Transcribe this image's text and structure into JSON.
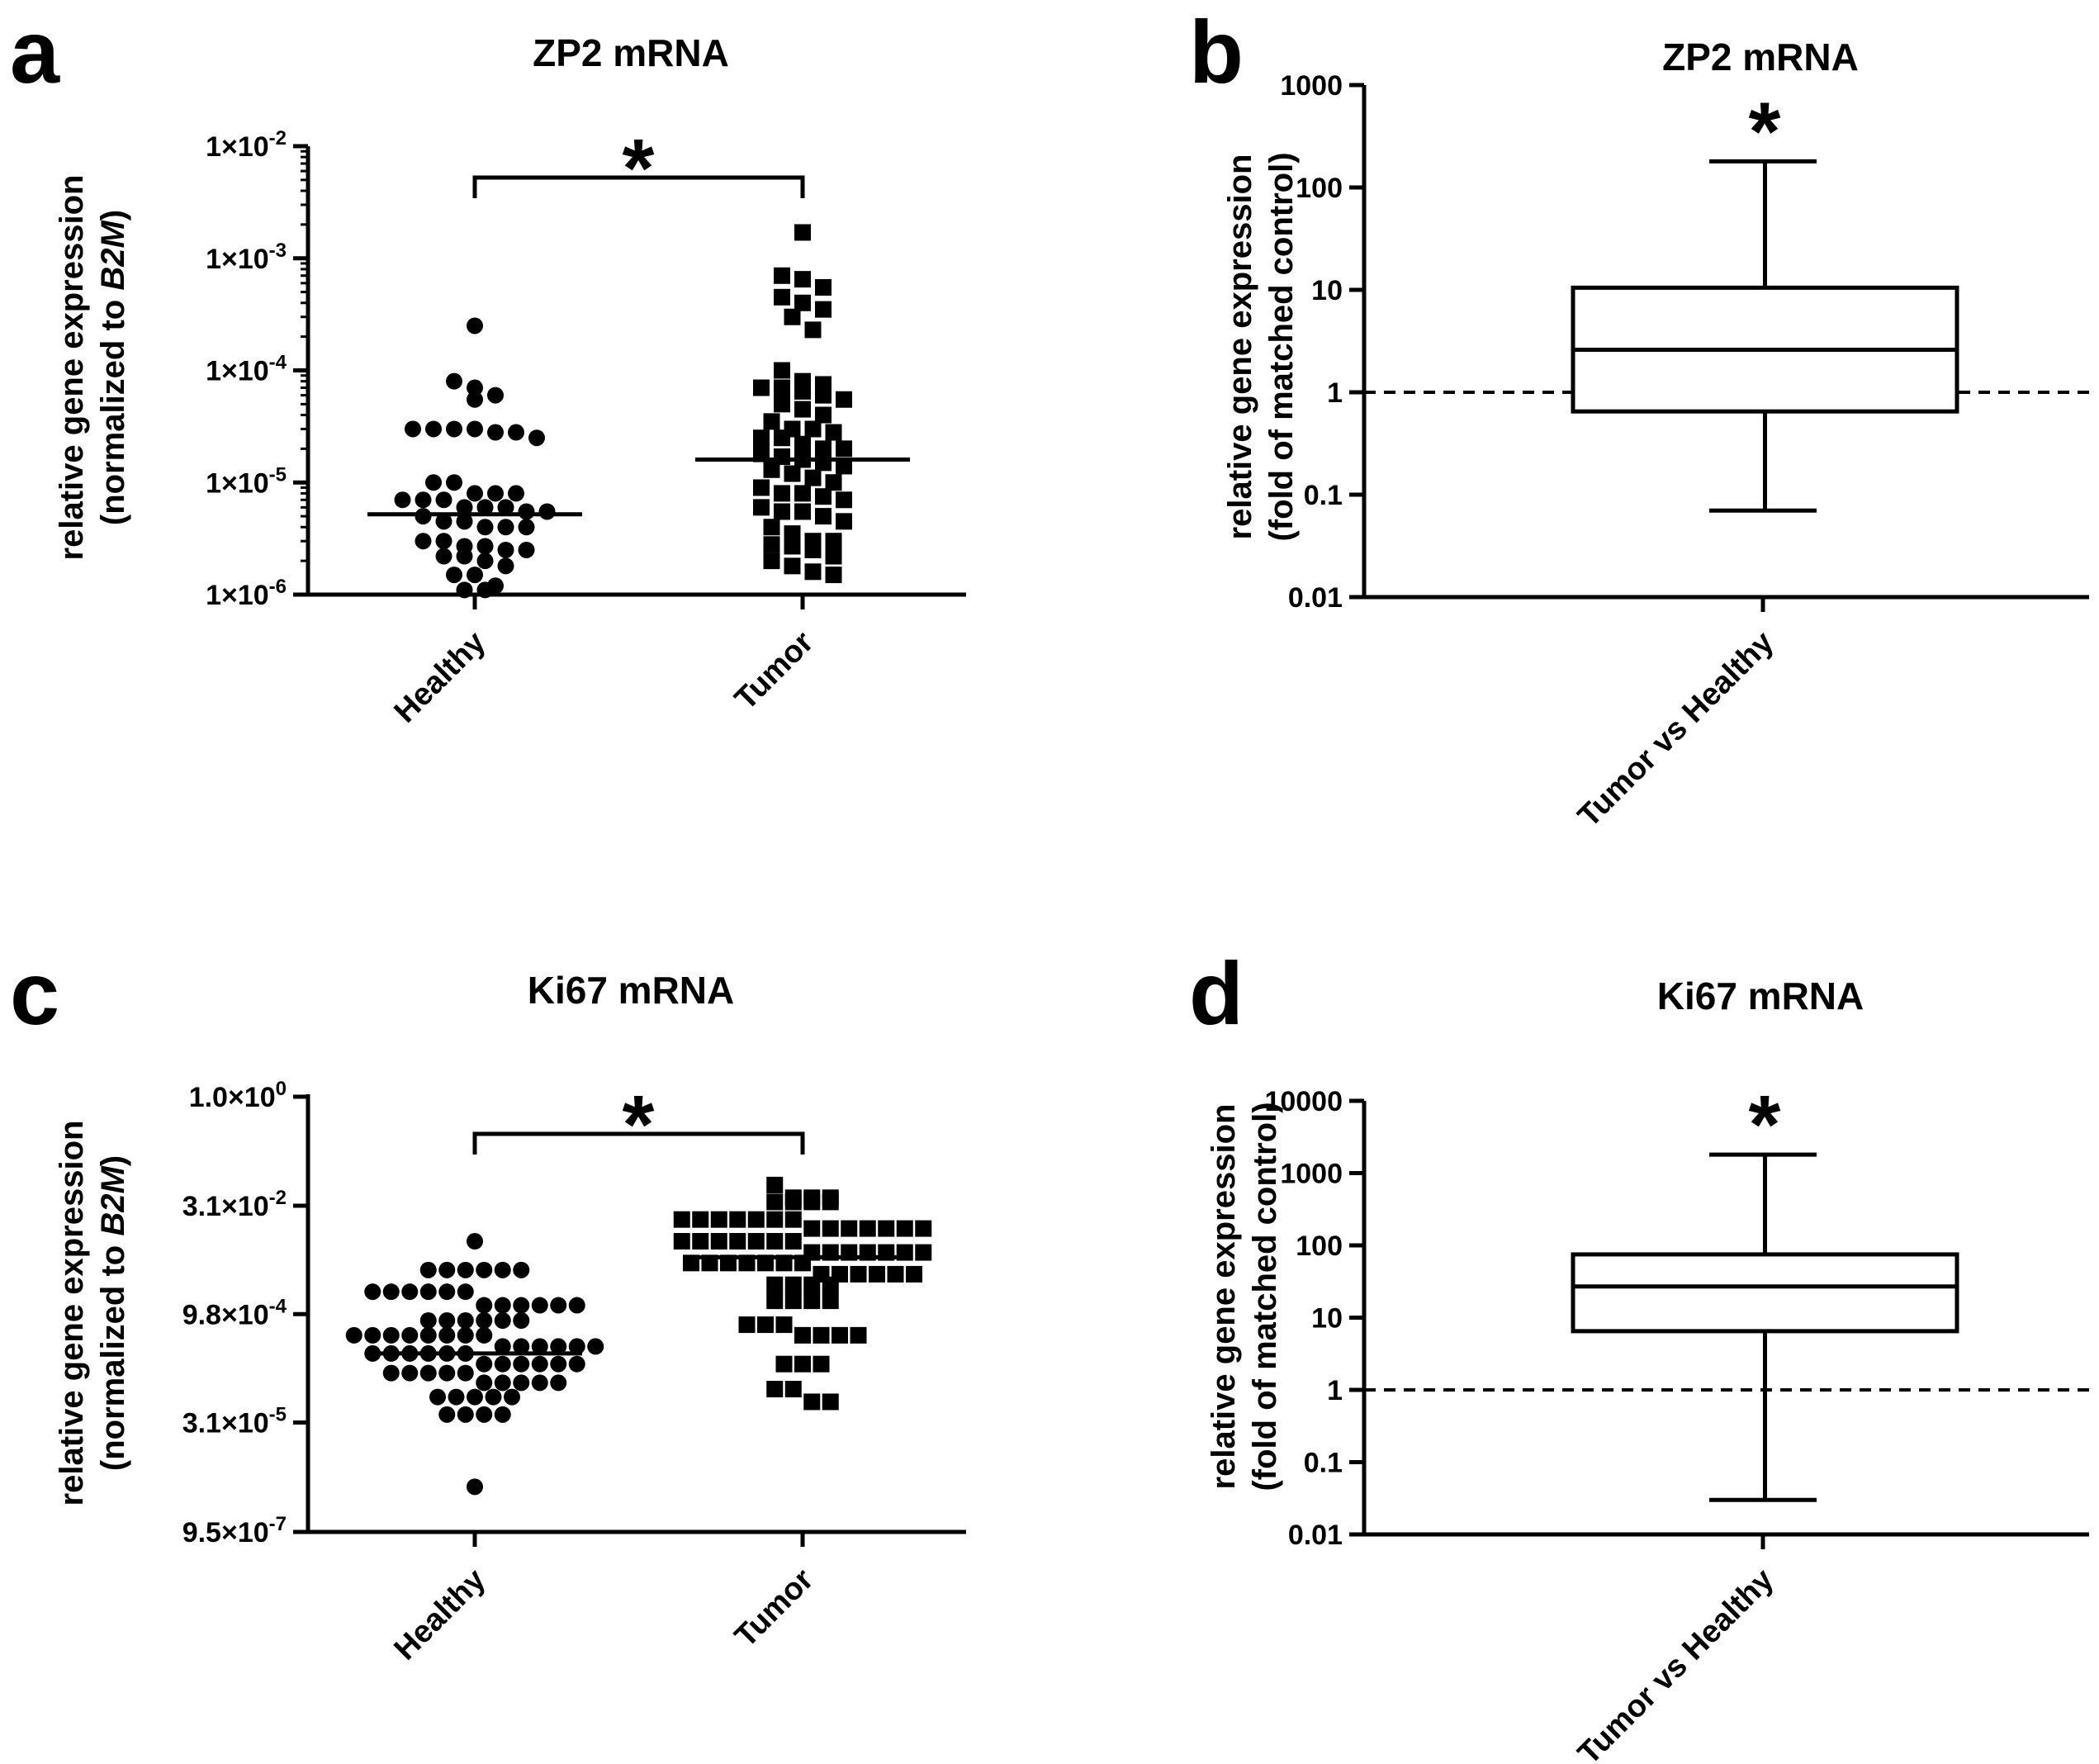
{
  "panels": {
    "a": {
      "letter": "a",
      "title": "ZP2 mRNA",
      "ylabel_line1": "relative gene expression",
      "ylabel_line2_prefix": "(normalized to ",
      "ylabel_line2_italic": "B2M",
      "ylabel_line2_suffix": ")",
      "significance": "*"
    },
    "b": {
      "letter": "b",
      "title": "ZP2 mRNA",
      "ylabel_line1": "relative gene expression",
      "ylabel_line2": "(fold of matched control)",
      "significance": "*"
    },
    "c": {
      "letter": "c",
      "title": "Ki67 mRNA",
      "ylabel_line1": "relative gene expression",
      "ylabel_line2_prefix": "(normalized to ",
      "ylabel_line2_italic": "B2M",
      "ylabel_line2_suffix": ")",
      "significance": "*"
    },
    "d": {
      "letter": "d",
      "title": "Ki67 mRNA",
      "ylabel_line1": "relative gene expression",
      "ylabel_line2": "(fold of matched control)",
      "significance": "*"
    }
  },
  "chart_data": [
    {
      "panel": "a",
      "type": "scatter",
      "title": "ZP2 mRNA",
      "yscale": "log",
      "ylim": [
        1e-06,
        0.01
      ],
      "yticks": [
        {
          "value": 0.01,
          "mant": "1×10",
          "exp": "-2"
        },
        {
          "value": 0.001,
          "mant": "1×10",
          "exp": "-3"
        },
        {
          "value": 0.0001,
          "mant": "1×10",
          "exp": "-4"
        },
        {
          "value": 1e-05,
          "mant": "1×10",
          "exp": "-5"
        },
        {
          "value": 1e-06,
          "mant": "1×10",
          "exp": "-6"
        }
      ],
      "categories": [
        "Healthy",
        "Tumor"
      ],
      "series": [
        {
          "name": "Healthy",
          "marker": "circle",
          "median": 5.2e-06,
          "values": [
            0.00025,
            8e-05,
            6e-05,
            7e-05,
            5.5e-05,
            3e-05,
            3e-05,
            2.8e-05,
            2.8e-05,
            3e-05,
            3e-05,
            2.5e-05,
            1e-05,
            1e-05,
            8e-06,
            8e-06,
            8e-06,
            7e-06,
            7e-06,
            7e-06,
            6e-06,
            6e-06,
            6e-06,
            5.5e-06,
            5.5e-06,
            5e-06,
            4.5e-06,
            4.5e-06,
            4e-06,
            4e-06,
            4e-06,
            3e-06,
            3e-06,
            2.7e-06,
            2.7e-06,
            2.5e-06,
            2.5e-06,
            2.2e-06,
            2.2e-06,
            2e-06,
            1.8e-06,
            1.5e-06,
            1.5e-06,
            1.2e-06,
            1.1e-06,
            1.1e-06
          ]
        },
        {
          "name": "Tumor",
          "marker": "square",
          "median": 1.6e-05,
          "values": [
            0.0017,
            0.0007,
            0.00065,
            0.00055,
            0.00045,
            0.0004,
            0.00035,
            0.0003,
            0.00023,
            0.0001,
            8e-05,
            7.5e-05,
            7e-05,
            7e-05,
            6.5e-05,
            6e-05,
            5.5e-05,
            5e-05,
            4.5e-05,
            4e-05,
            3.5e-05,
            3e-05,
            3e-05,
            2.8e-05,
            2.5e-05,
            2.5e-05,
            2.2e-05,
            2e-05,
            2e-05,
            1.8e-05,
            1.7e-05,
            1.6e-05,
            1.5e-05,
            1.4e-05,
            1.3e-05,
            1.2e-05,
            1.1e-05,
            1e-05,
            9e-06,
            8e-06,
            8e-06,
            7.5e-06,
            7e-06,
            6e-06,
            5.5e-06,
            5.5e-06,
            5e-06,
            4.5e-06,
            4e-06,
            3.5e-06,
            3e-06,
            3e-06,
            2.8e-06,
            2.7e-06,
            2.5e-06,
            2.2e-06,
            2e-06,
            1.8e-06,
            1.6e-06,
            1.5e-06
          ]
        }
      ],
      "significance": "*"
    },
    {
      "panel": "b",
      "type": "box",
      "title": "ZP2 mRNA",
      "yscale": "log",
      "ylim": [
        0.01,
        1000
      ],
      "yticks": [
        {
          "value": 1000,
          "label": "1000"
        },
        {
          "value": 100,
          "label": "100"
        },
        {
          "value": 10,
          "label": "10"
        },
        {
          "value": 1,
          "label": "1"
        },
        {
          "value": 0.1,
          "label": "0.1"
        },
        {
          "value": 0.01,
          "label": "0.01"
        }
      ],
      "categories": [
        "Tumor vs Healthy"
      ],
      "box": {
        "min": 0.07,
        "q1": 0.65,
        "median": 2.6,
        "q3": 10.5,
        "max": 180
      },
      "reference_line": 1,
      "significance": "*"
    },
    {
      "panel": "c",
      "type": "scatter",
      "title": "Ki67 mRNA",
      "yscale": "log",
      "ylim": [
        9.5e-07,
        1.0
      ],
      "yticks": [
        {
          "value": 1.0,
          "mant": "1.0×10",
          "exp": "0"
        },
        {
          "value": 0.031,
          "mant": "3.1×10",
          "exp": "-2"
        },
        {
          "value": 0.00098,
          "mant": "9.8×10",
          "exp": "-4"
        },
        {
          "value": 3.1e-05,
          "mant": "3.1×10",
          "exp": "-5"
        },
        {
          "value": 9.5e-07,
          "mant": "9.5×10",
          "exp": "-7"
        }
      ],
      "categories": [
        "Healthy",
        "Tumor"
      ],
      "series": [
        {
          "name": "Healthy",
          "marker": "circle",
          "median": 0.00028,
          "values": [
            0.01,
            0.004,
            0.004,
            0.004,
            0.004,
            0.004,
            0.004,
            0.002,
            0.002,
            0.002,
            0.002,
            0.002,
            0.002,
            0.0013,
            0.0013,
            0.0013,
            0.0013,
            0.0013,
            0.0013,
            0.0008,
            0.0008,
            0.0008,
            0.0008,
            0.0008,
            0.0008,
            0.0005,
            0.0005,
            0.0005,
            0.0005,
            0.0005,
            0.0005,
            0.0005,
            0.0005,
            0.00035,
            0.00035,
            0.00035,
            0.00035,
            0.00035,
            0.00035,
            0.00028,
            0.00028,
            0.00028,
            0.00028,
            0.00028,
            0.00028,
            0.0002,
            0.0002,
            0.0002,
            0.0002,
            0.0002,
            0.0002,
            0.00015,
            0.00015,
            0.00015,
            0.00015,
            0.00015,
            0.00011,
            0.00011,
            0.00011,
            0.00011,
            0.00011,
            7e-05,
            7e-05,
            7e-05,
            7e-05,
            7e-05,
            4e-05,
            4e-05,
            4e-05,
            4e-05,
            4e-06
          ]
        },
        {
          "name": "Tumor",
          "marker": "square",
          "median": 0.006,
          "values": [
            0.06,
            0.04,
            0.04,
            0.04,
            0.035,
            0.035,
            0.035,
            0.035,
            0.02,
            0.02,
            0.02,
            0.02,
            0.02,
            0.02,
            0.02,
            0.015,
            0.015,
            0.015,
            0.015,
            0.015,
            0.015,
            0.015,
            0.01,
            0.01,
            0.01,
            0.01,
            0.01,
            0.01,
            0.01,
            0.007,
            0.007,
            0.007,
            0.007,
            0.007,
            0.007,
            0.007,
            0.005,
            0.005,
            0.005,
            0.005,
            0.005,
            0.005,
            0.005,
            0.0035,
            0.0035,
            0.0035,
            0.0035,
            0.0035,
            0.0035,
            0.0025,
            0.0025,
            0.0025,
            0.0025,
            0.0015,
            0.0015,
            0.0015,
            0.0015,
            0.0007,
            0.0007,
            0.0007,
            0.0005,
            0.0005,
            0.0005,
            0.0005,
            0.0002,
            0.0002,
            0.0002,
            9e-05,
            9e-05,
            6e-05,
            6e-05
          ]
        }
      ],
      "significance": "*"
    },
    {
      "panel": "d",
      "type": "box",
      "title": "Ki67 mRNA",
      "yscale": "log",
      "ylim": [
        0.01,
        10000
      ],
      "yticks": [
        {
          "value": 10000,
          "label": "10000"
        },
        {
          "value": 1000,
          "label": "1000"
        },
        {
          "value": 100,
          "label": "100"
        },
        {
          "value": 10,
          "label": "10"
        },
        {
          "value": 1,
          "label": "1"
        },
        {
          "value": 0.1,
          "label": "0.1"
        },
        {
          "value": 0.01,
          "label": "0.01"
        }
      ],
      "categories": [
        "Tumor vs Healthy"
      ],
      "box": {
        "min": 0.03,
        "q1": 6.5,
        "median": 27,
        "q3": 75,
        "max": 1800
      },
      "reference_line": 1,
      "significance": "*"
    }
  ]
}
